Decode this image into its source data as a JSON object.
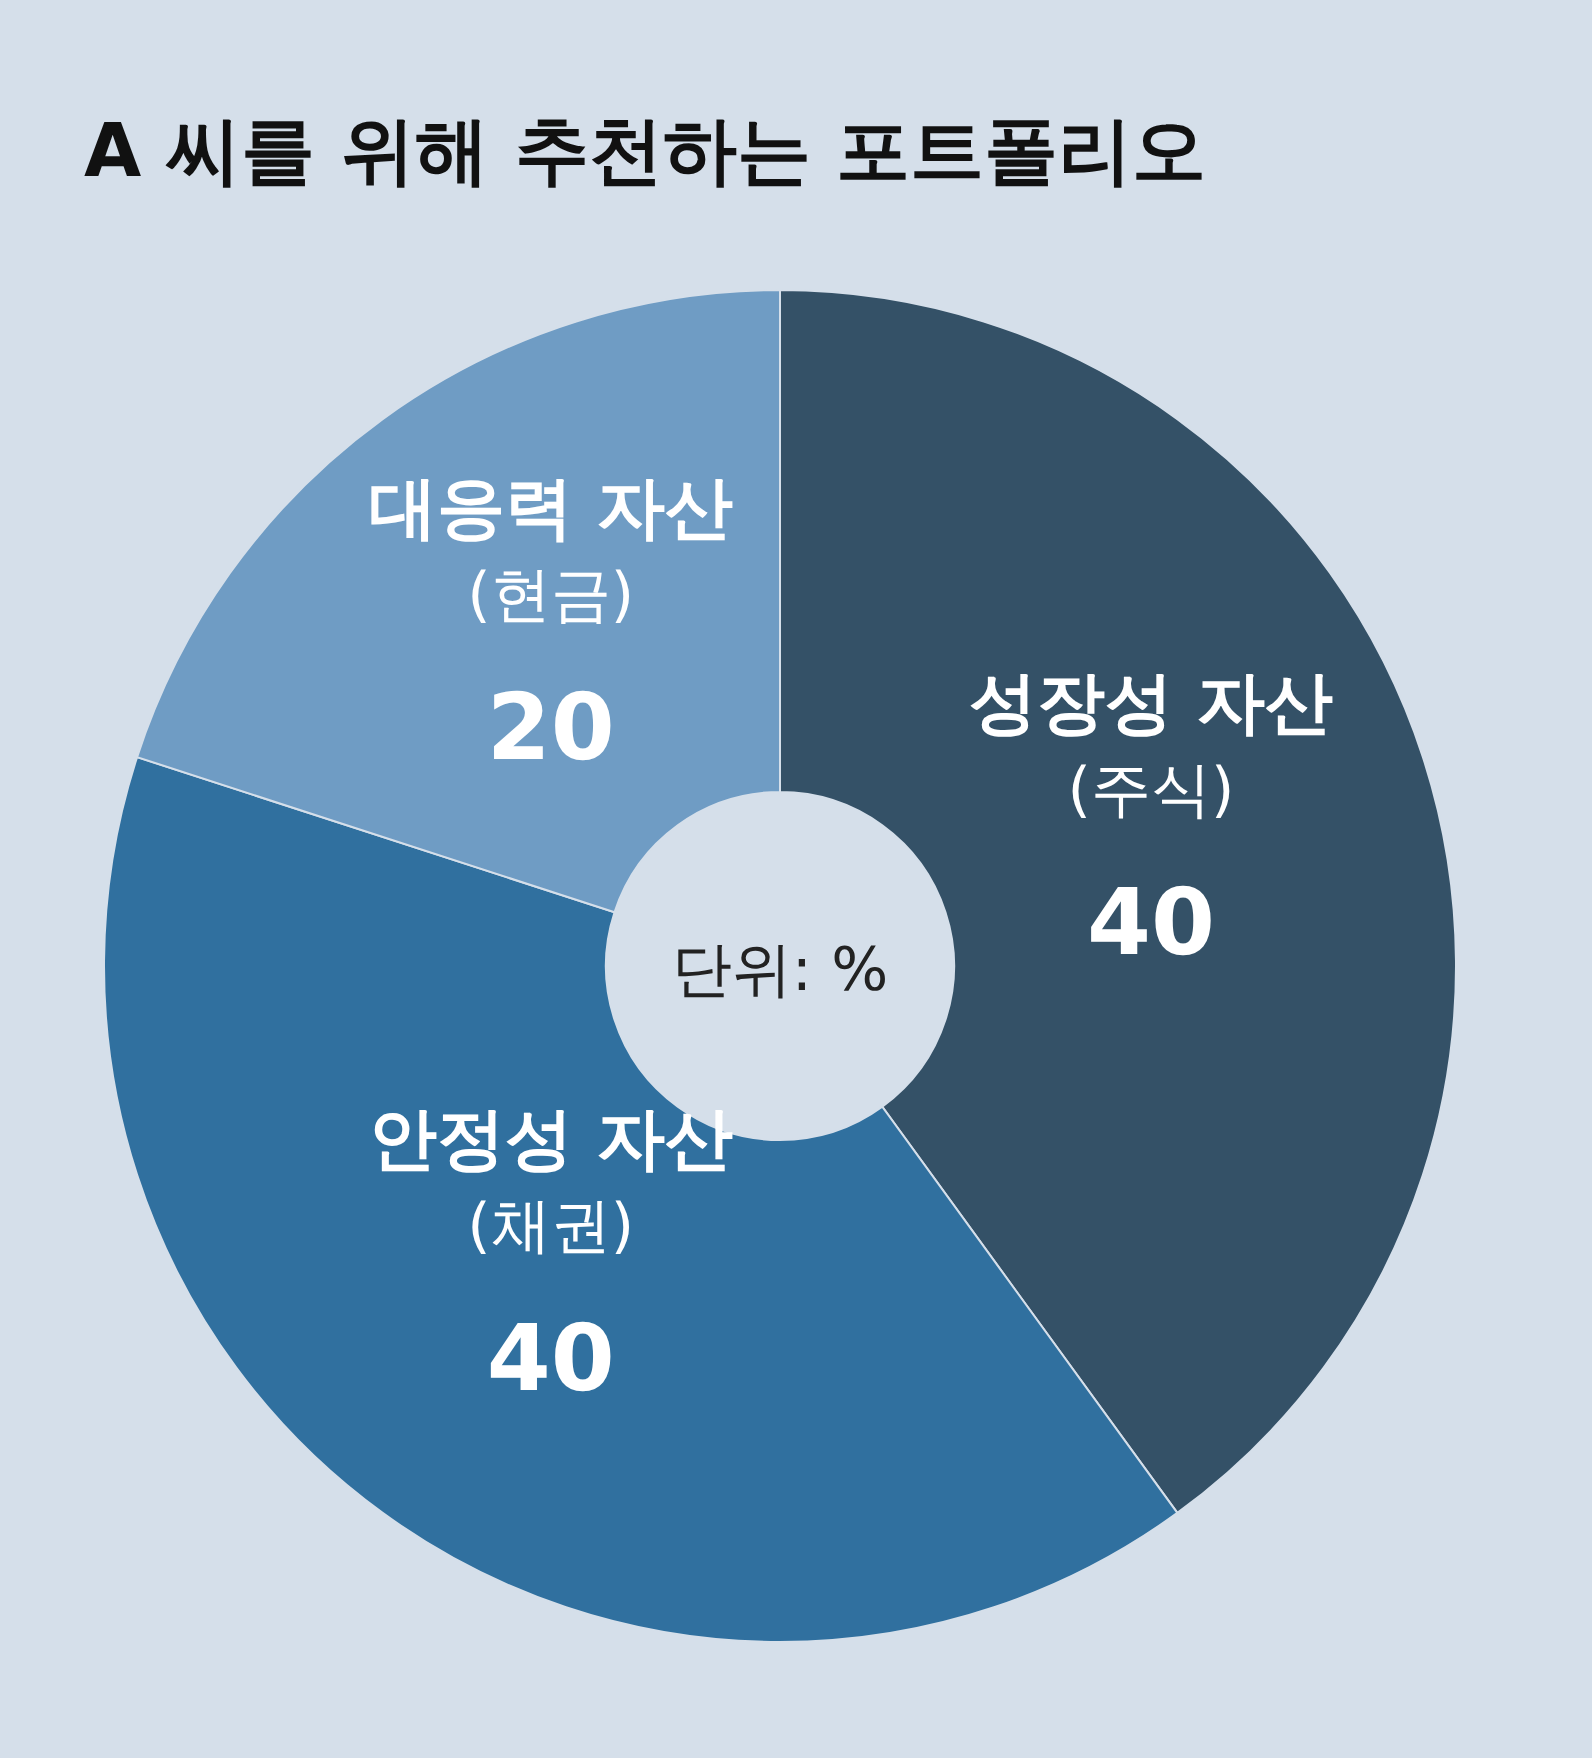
{
  "chart_data": {
    "type": "donut",
    "title": "A 씨를 위해 추천하는 포트폴리오",
    "categories": [
      "성장성 자산\n(주식)",
      "안정성 자산\n(채권)",
      "대응력 자산\n(현금)"
    ],
    "values": [
      40,
      40,
      20
    ],
    "colors": [
      "#345167",
      "#30709f",
      "#6f9cc4"
    ],
    "data_labels": true,
    "annotations": [
      "단위: %"
    ]
  }
}
